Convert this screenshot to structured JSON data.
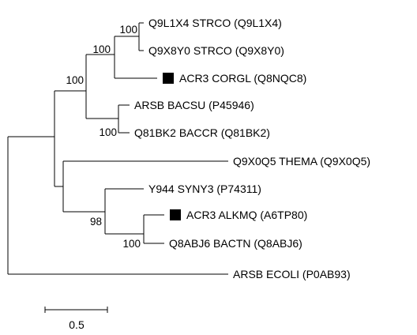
{
  "tree": {
    "leaves": [
      {
        "id": "q9l1x4",
        "label": "Q9L1X4 STRCO (Q9L1X4)",
        "marker": false
      },
      {
        "id": "q9x8y0",
        "label": "Q9X8Y0 STRCO (Q9X8Y0)",
        "marker": false
      },
      {
        "id": "acr3-corgl",
        "label": "ACR3 CORGL (Q8NQC8)",
        "marker": true
      },
      {
        "id": "arsb-bacsu",
        "label": "ARSB BACSU (P45946)",
        "marker": false
      },
      {
        "id": "q81bk2",
        "label": "Q81BK2 BACCR (Q81BK2)",
        "marker": false
      },
      {
        "id": "q9x0q5",
        "label": "Q9X0Q5 THEMA (Q9X0Q5)",
        "marker": false
      },
      {
        "id": "y944",
        "label": "Y944 SYNY3 (P74311)",
        "marker": false
      },
      {
        "id": "acr3-alkmq",
        "label": "ACR3 ALKMQ (A6TP80)",
        "marker": true
      },
      {
        "id": "q8abj6",
        "label": "Q8ABJ6 BACTN (Q8ABJ6)",
        "marker": false
      },
      {
        "id": "arsb-ecoli",
        "label": "ARSB ECOLI (P0AB93)",
        "marker": false
      }
    ],
    "bootstrap": [
      {
        "id": "strco-clade",
        "value": "100"
      },
      {
        "id": "actino-clade",
        "value": "100"
      },
      {
        "id": "upper-clade",
        "value": "100"
      },
      {
        "id": "bacillus-clade",
        "value": "100"
      },
      {
        "id": "lower-sub-clade",
        "value": "98"
      },
      {
        "id": "alkmq-bactn-clade",
        "value": "100"
      }
    ],
    "scale_bar": {
      "label": "0.5"
    },
    "marker_color": "#000000",
    "line_color": "#000000"
  }
}
